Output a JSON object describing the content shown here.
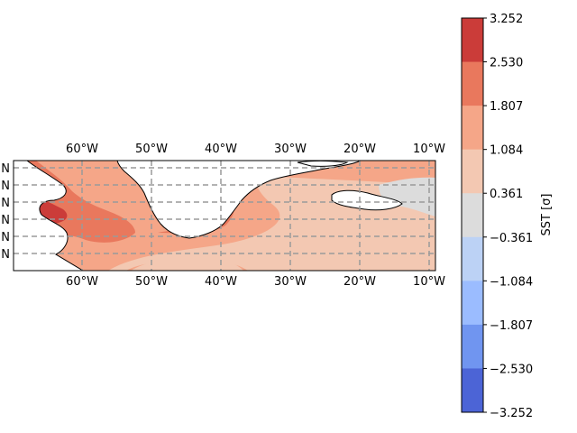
{
  "map": {
    "lon_labels": [
      "60°W",
      "50°W",
      "40°W",
      "30°W",
      "20°W",
      "10°W"
    ],
    "lat_labels": [
      "N",
      "N",
      "N",
      "N",
      "N",
      "N"
    ]
  },
  "colorbar": {
    "label": "SST [σ]",
    "ticks": [
      "3.252",
      "2.530",
      "1.807",
      "1.084",
      "0.361",
      "−0.361",
      "−1.084",
      "−1.807",
      "−2.530",
      "−3.252"
    ],
    "colors": [
      "#cb3c39",
      "#e9785d",
      "#f5a688",
      "#f3c8b2",
      "#dcdcdc",
      "#bcd2f5",
      "#9bbcff",
      "#7095f0",
      "#4c64d6"
    ]
  },
  "legend_colors": {
    "land_fill": "#ffffff",
    "gridline": "#9a9a9a"
  }
}
